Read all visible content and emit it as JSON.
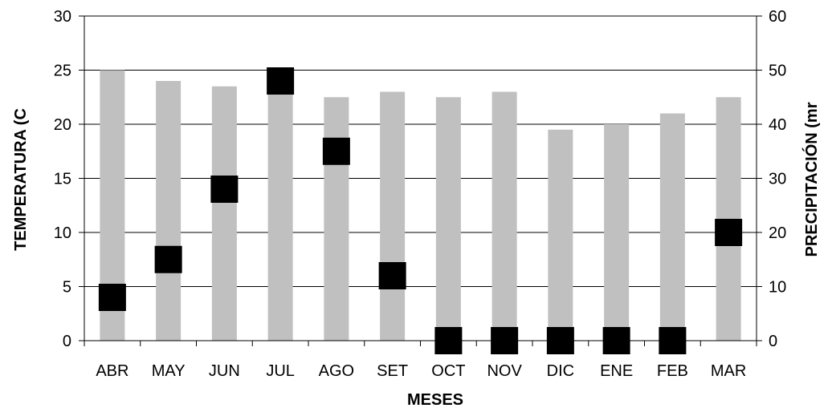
{
  "chart_data": {
    "type": "bar",
    "categories": [
      "ABR",
      "MAY",
      "JUN",
      "JUL",
      "AGO",
      "SET",
      "OCT",
      "NOV",
      "DIC",
      "ENE",
      "FEB",
      "MAR"
    ],
    "series": [
      {
        "type": "bar",
        "axis": "left",
        "values": [
          25,
          24,
          23.5,
          24,
          22.5,
          23,
          22.5,
          23,
          19.5,
          20,
          21,
          22.5
        ],
        "color": "#c0c0c0"
      },
      {
        "type": "scatter",
        "axis": "right",
        "marker": "square",
        "values": [
          8,
          15,
          28,
          48,
          35,
          12,
          0,
          0,
          0,
          0,
          0,
          20
        ],
        "color": "#000000"
      }
    ],
    "xlabel": "MESES",
    "ylabel": "TEMPERATURA (C",
    "y2label": "PRECIPITACIÓN (mr",
    "ylim": [
      0,
      30
    ],
    "y2lim": [
      0,
      60
    ],
    "yticks": [
      "0",
      "5",
      "10",
      "15",
      "20",
      "25",
      "30"
    ],
    "y2ticks": [
      "0",
      "10",
      "20",
      "30",
      "40",
      "50",
      "60"
    ],
    "grid": true,
    "legend": "none"
  }
}
